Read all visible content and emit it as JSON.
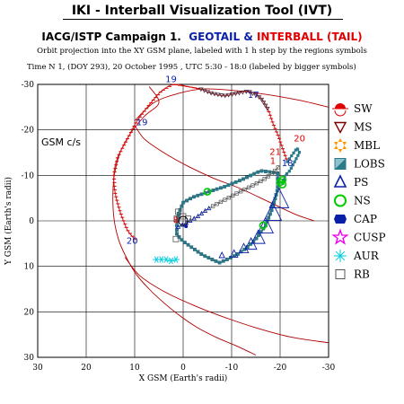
{
  "header": {
    "title": "IKI - Interball Visualization Tool (IVT)",
    "campaign_prefix": "IACG/ISTP Campaign 1.",
    "campaign_geotail": "GEOTAIL",
    "campaign_amp": "&",
    "campaign_interball": "INTERBALL (TAIL)",
    "subtitle": "Orbit projection into the XY GSM plane, labeled with 1 h step by the regions symbols",
    "timeline": "Time N 1, (DOY 293), 20 October  1995 ,  UTC 5:30 - 18:0 (labeled by bigger symbols)"
  },
  "colors": {
    "geotail": "#0a1fa8",
    "interball": "#e00000",
    "teal": "#2a7a8c",
    "dark": "#4a2a3a",
    "green": "#00cc00",
    "magnetopause": "#b00000"
  },
  "chart_data": {
    "type": "scatter",
    "coord_label": "GSM c/s",
    "xlabel": "X GSM (Earth's radii)",
    "ylabel": "Y GSM (Earth's radii)",
    "xlim": [
      30,
      -30
    ],
    "ylim": [
      -30,
      30
    ],
    "x_ticks": [
      "30",
      "20",
      "10",
      "0",
      "-10",
      "-20",
      "-30"
    ],
    "y_ticks": [
      "-30",
      "-20",
      "-10",
      "0",
      "10",
      "20",
      "30"
    ],
    "grid": true,
    "legend_position": "right",
    "legend": [
      {
        "label": "SW",
        "icon": "sun-icon",
        "color": "#e00000"
      },
      {
        "label": "MS",
        "icon": "down-triangle-icon",
        "color": "#7a0000"
      },
      {
        "label": "MBL",
        "icon": "star-of-david-icon",
        "color": "#ff9900"
      },
      {
        "label": "LOBS",
        "icon": "half-square-icon",
        "color": "#2a7a8c"
      },
      {
        "label": "PS",
        "icon": "triangle-icon",
        "color": "#0a1fa8"
      },
      {
        "label": "NS",
        "icon": "circle-icon",
        "color": "#00cc00"
      },
      {
        "label": "CAP",
        "icon": "hexagon-icon",
        "color": "#0a1fa8"
      },
      {
        "label": "CUSP",
        "icon": "star-icon",
        "color": "#ee00ee"
      },
      {
        "label": "AUR",
        "icon": "asterisk-icon",
        "color": "#00ccdd"
      },
      {
        "label": "RB",
        "icon": "square-icon",
        "color": "#555555"
      }
    ],
    "hour_labels": [
      {
        "text": "19",
        "x": 2.5,
        "y": -30.5,
        "color": "#0a1fa8"
      },
      {
        "text": "17",
        "x": -14.5,
        "y": -27,
        "color": "#0a1fa8"
      },
      {
        "text": "19",
        "x": 8.5,
        "y": -21,
        "color": "#0a1fa8"
      },
      {
        "text": "20",
        "x": -24,
        "y": -17.5,
        "color": "#e00000"
      },
      {
        "text": "21",
        "x": -19,
        "y": -14.5,
        "color": "#e00000"
      },
      {
        "text": "1",
        "x": -18.5,
        "y": -12.5,
        "color": "#e00000"
      },
      {
        "text": "18",
        "x": -21.5,
        "y": -12,
        "color": "#0a1fa8"
      },
      {
        "text": "8",
        "x": 1.5,
        "y": 0.5,
        "color": "#e00000"
      },
      {
        "text": "20",
        "x": 10.5,
        "y": 5,
        "color": "#0a1fa8"
      }
    ],
    "interball_orbit": [
      [
        1,
        1.3
      ],
      [
        -1,
        0.2
      ],
      [
        -3,
        -1
      ],
      [
        -5,
        -2.6
      ],
      [
        -8,
        -4.3
      ],
      [
        -11,
        -6
      ],
      [
        -14,
        -7.6
      ],
      [
        -16.5,
        -9
      ],
      [
        -18.5,
        -10.5
      ],
      [
        -19.8,
        -12
      ]
    ],
    "geotail_orbit": [
      [
        10,
        4
      ],
      [
        11.5,
        2
      ],
      [
        13,
        -2
      ],
      [
        14,
        -6
      ],
      [
        14.3,
        -10
      ],
      [
        13.5,
        -14
      ],
      [
        11.5,
        -18
      ],
      [
        9.5,
        -22
      ],
      [
        7,
        -25.5
      ],
      [
        4.5,
        -28.5
      ],
      [
        2,
        -30
      ],
      [
        -1,
        -29.5
      ],
      [
        -3.5,
        -29
      ],
      [
        -6,
        -28
      ],
      [
        -8.5,
        -27.5
      ],
      [
        -11,
        -28
      ],
      [
        -13.5,
        -28.5
      ],
      [
        -16,
        -27
      ],
      [
        -17.5,
        -24.5
      ],
      [
        -18.5,
        -21.5
      ],
      [
        -19.5,
        -19
      ],
      [
        -20,
        -17.5
      ],
      [
        -20.5,
        -16
      ],
      [
        -21,
        -14.5
      ],
      [
        -21.5,
        -13
      ]
    ],
    "lobe_tail_track": [
      [
        -21.5,
        -13
      ],
      [
        -22.5,
        -14.5
      ],
      [
        -23.5,
        -16
      ],
      [
        -24,
        -15
      ],
      [
        -23,
        -13
      ],
      [
        -22,
        -11
      ],
      [
        -21,
        -10
      ],
      [
        -20.5,
        -8
      ]
    ],
    "inner_loop": [
      [
        -19.5,
        -10.5
      ],
      [
        -16,
        -11
      ],
      [
        -12,
        -9
      ],
      [
        -8.5,
        -7.5
      ],
      [
        -5,
        -6.3
      ],
      [
        -2,
        -5.2
      ],
      [
        0,
        -4
      ],
      [
        1,
        -1.5
      ],
      [
        1.3,
        1
      ],
      [
        1.3,
        3
      ],
      [
        0,
        4.5
      ],
      [
        -2,
        6
      ],
      [
        -4,
        7.5
      ],
      [
        -6,
        8.5
      ],
      [
        -7.5,
        9.2
      ],
      [
        -9,
        8.5
      ],
      [
        -11,
        7.5
      ],
      [
        -13,
        6
      ],
      [
        -15,
        4
      ],
      [
        -17,
        1
      ],
      [
        -18.5,
        -3
      ],
      [
        -19.5,
        -7
      ],
      [
        -19.5,
        -10.5
      ]
    ],
    "magnetopause_inner": [
      [
        7,
        -29.5
      ],
      [
        5,
        -26
      ],
      [
        8,
        -23
      ],
      [
        11,
        -19
      ],
      [
        13,
        -15
      ],
      [
        14.2,
        -10
      ],
      [
        14.5,
        -5
      ],
      [
        14.2,
        0
      ],
      [
        13.2,
        4.5
      ],
      [
        11.5,
        8.5
      ],
      [
        9.5,
        12
      ],
      [
        7,
        15
      ],
      [
        4,
        18
      ],
      [
        0.5,
        21
      ],
      [
        -3,
        23.5
      ],
      [
        -7,
        25.7
      ],
      [
        -11,
        27.5
      ],
      [
        -15,
        29.5
      ]
    ],
    "magnetopause_outer": [
      [
        10,
        -22
      ],
      [
        6,
        -26
      ],
      [
        1,
        -28
      ],
      [
        -4,
        -29
      ],
      [
        -10,
        -28.7
      ],
      [
        -17,
        -27.8
      ],
      [
        -24,
        -26.5
      ],
      [
        -30,
        -25
      ]
    ],
    "bow_shock": [
      [
        10,
        -21
      ],
      [
        8,
        -18
      ],
      [
        4,
        -15
      ],
      [
        -1,
        -12
      ],
      [
        -6,
        -9.5
      ],
      [
        -12,
        -7
      ],
      [
        -18,
        -4
      ],
      [
        -23,
        -1.5
      ],
      [
        -27,
        0
      ]
    ],
    "lower_curve": [
      [
        12,
        8
      ],
      [
        9,
        12
      ],
      [
        4,
        15.5
      ],
      [
        -2,
        18.5
      ],
      [
        -8,
        21
      ],
      [
        -15,
        23.5
      ],
      [
        -22,
        25.5
      ],
      [
        -30,
        26.8
      ]
    ],
    "ns_points": [
      [
        -5,
        -6.4
      ],
      [
        -16.5,
        1
      ],
      [
        -20.5,
        -8
      ],
      [
        -20,
        -8.5
      ],
      [
        -20.5,
        -9
      ]
    ],
    "ps_points": [
      [
        -8,
        7.5
      ],
      [
        -10.5,
        7.2
      ],
      [
        -12.5,
        6
      ],
      [
        -14,
        5
      ],
      [
        -15.5,
        3.5
      ],
      [
        -17,
        1
      ],
      [
        -18.5,
        -2
      ],
      [
        -19.8,
        -5
      ]
    ],
    "aur_points": [
      [
        5.5,
        8.5
      ],
      [
        4.5,
        8.5
      ],
      [
        3.5,
        8.5
      ],
      [
        2.5,
        8.8
      ],
      [
        1.5,
        8.5
      ]
    ],
    "rb_points": [
      [
        0,
        -1
      ],
      [
        -1,
        -0.5
      ],
      [
        1,
        -2
      ],
      [
        1.3,
        -0.5
      ],
      [
        1.5,
        4
      ]
    ]
  }
}
